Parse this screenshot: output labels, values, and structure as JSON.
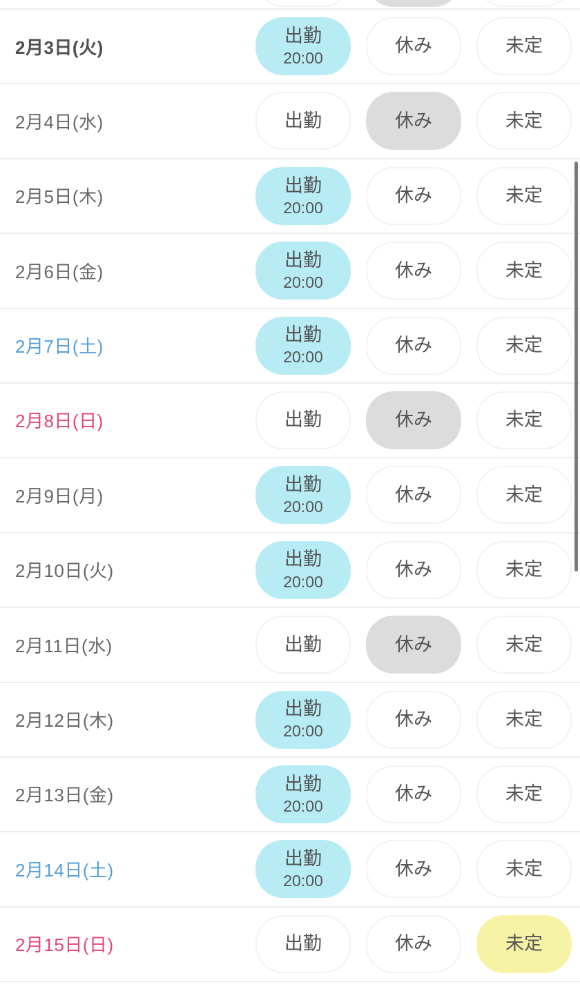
{
  "labels": {
    "work": "出勤",
    "off": "休み",
    "undecided": "未定"
  },
  "colors": {
    "work_selected_bg": "#b7ecf5",
    "off_selected_bg": "#dcdcdc",
    "undecided_selected_bg": "#f6f3a7",
    "date_default": "#686868",
    "date_today": "#4f4f4f",
    "date_saturday": "#55a0d8",
    "date_sunday": "#e5447c",
    "button_text": "#555555",
    "divider": "#ededed",
    "scrollbar": "#7a7a7a"
  },
  "partial_top_row": {
    "selected": "off"
  },
  "rows": [
    {
      "date": "2月3日(火)",
      "day_type": "today",
      "selected": "work",
      "time": "20:00"
    },
    {
      "date": "2月4日(水)",
      "day_type": "weekday",
      "selected": "off"
    },
    {
      "date": "2月5日(木)",
      "day_type": "weekday",
      "selected": "work",
      "time": "20:00"
    },
    {
      "date": "2月6日(金)",
      "day_type": "weekday",
      "selected": "work",
      "time": "20:00"
    },
    {
      "date": "2月7日(土)",
      "day_type": "saturday",
      "selected": "work",
      "time": "20:00"
    },
    {
      "date": "2月8日(日)",
      "day_type": "sunday",
      "selected": "off"
    },
    {
      "date": "2月9日(月)",
      "day_type": "weekday",
      "selected": "work",
      "time": "20:00"
    },
    {
      "date": "2月10日(火)",
      "day_type": "weekday",
      "selected": "work",
      "time": "20:00"
    },
    {
      "date": "2月11日(水)",
      "day_type": "weekday",
      "selected": "off"
    },
    {
      "date": "2月12日(木)",
      "day_type": "weekday",
      "selected": "work",
      "time": "20:00"
    },
    {
      "date": "2月13日(金)",
      "day_type": "weekday",
      "selected": "work",
      "time": "20:00"
    },
    {
      "date": "2月14日(土)",
      "day_type": "saturday",
      "selected": "work",
      "time": "20:00"
    },
    {
      "date": "2月15日(日)",
      "day_type": "sunday",
      "selected": "undecided"
    }
  ]
}
